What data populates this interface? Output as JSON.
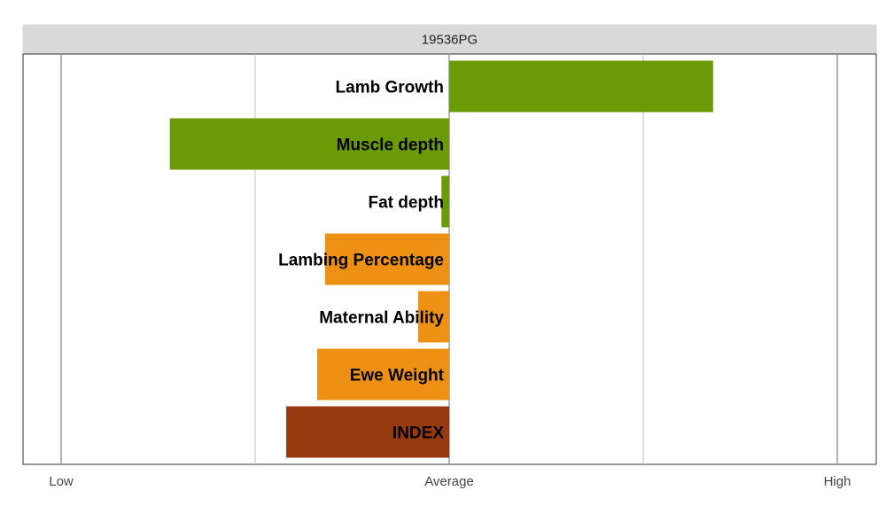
{
  "chart_data": {
    "type": "bar",
    "orientation": "horizontal",
    "title": "19536PG",
    "categories": [
      "Lamb Growth",
      "Muscle depth",
      "Fat depth",
      "Lambing Percentage",
      "Maternal Ability",
      "Ewe Weight",
      "INDEX"
    ],
    "values": [
      0.68,
      -0.72,
      -0.02,
      -0.32,
      -0.08,
      -0.34,
      -0.42
    ],
    "colors": [
      "#6b9a07",
      "#6b9a07",
      "#6b9a07",
      "#ee9014",
      "#ee9014",
      "#ee9014",
      "#963a10"
    ],
    "xlim": [
      -1,
      1
    ],
    "x_ticks": [
      {
        "value": -1,
        "label": "Low"
      },
      {
        "value": 0,
        "label": "Average"
      },
      {
        "value": 1,
        "label": "High"
      }
    ],
    "minor_gridlines": [
      -0.5,
      0.5
    ],
    "grid": true,
    "legend": "none"
  }
}
